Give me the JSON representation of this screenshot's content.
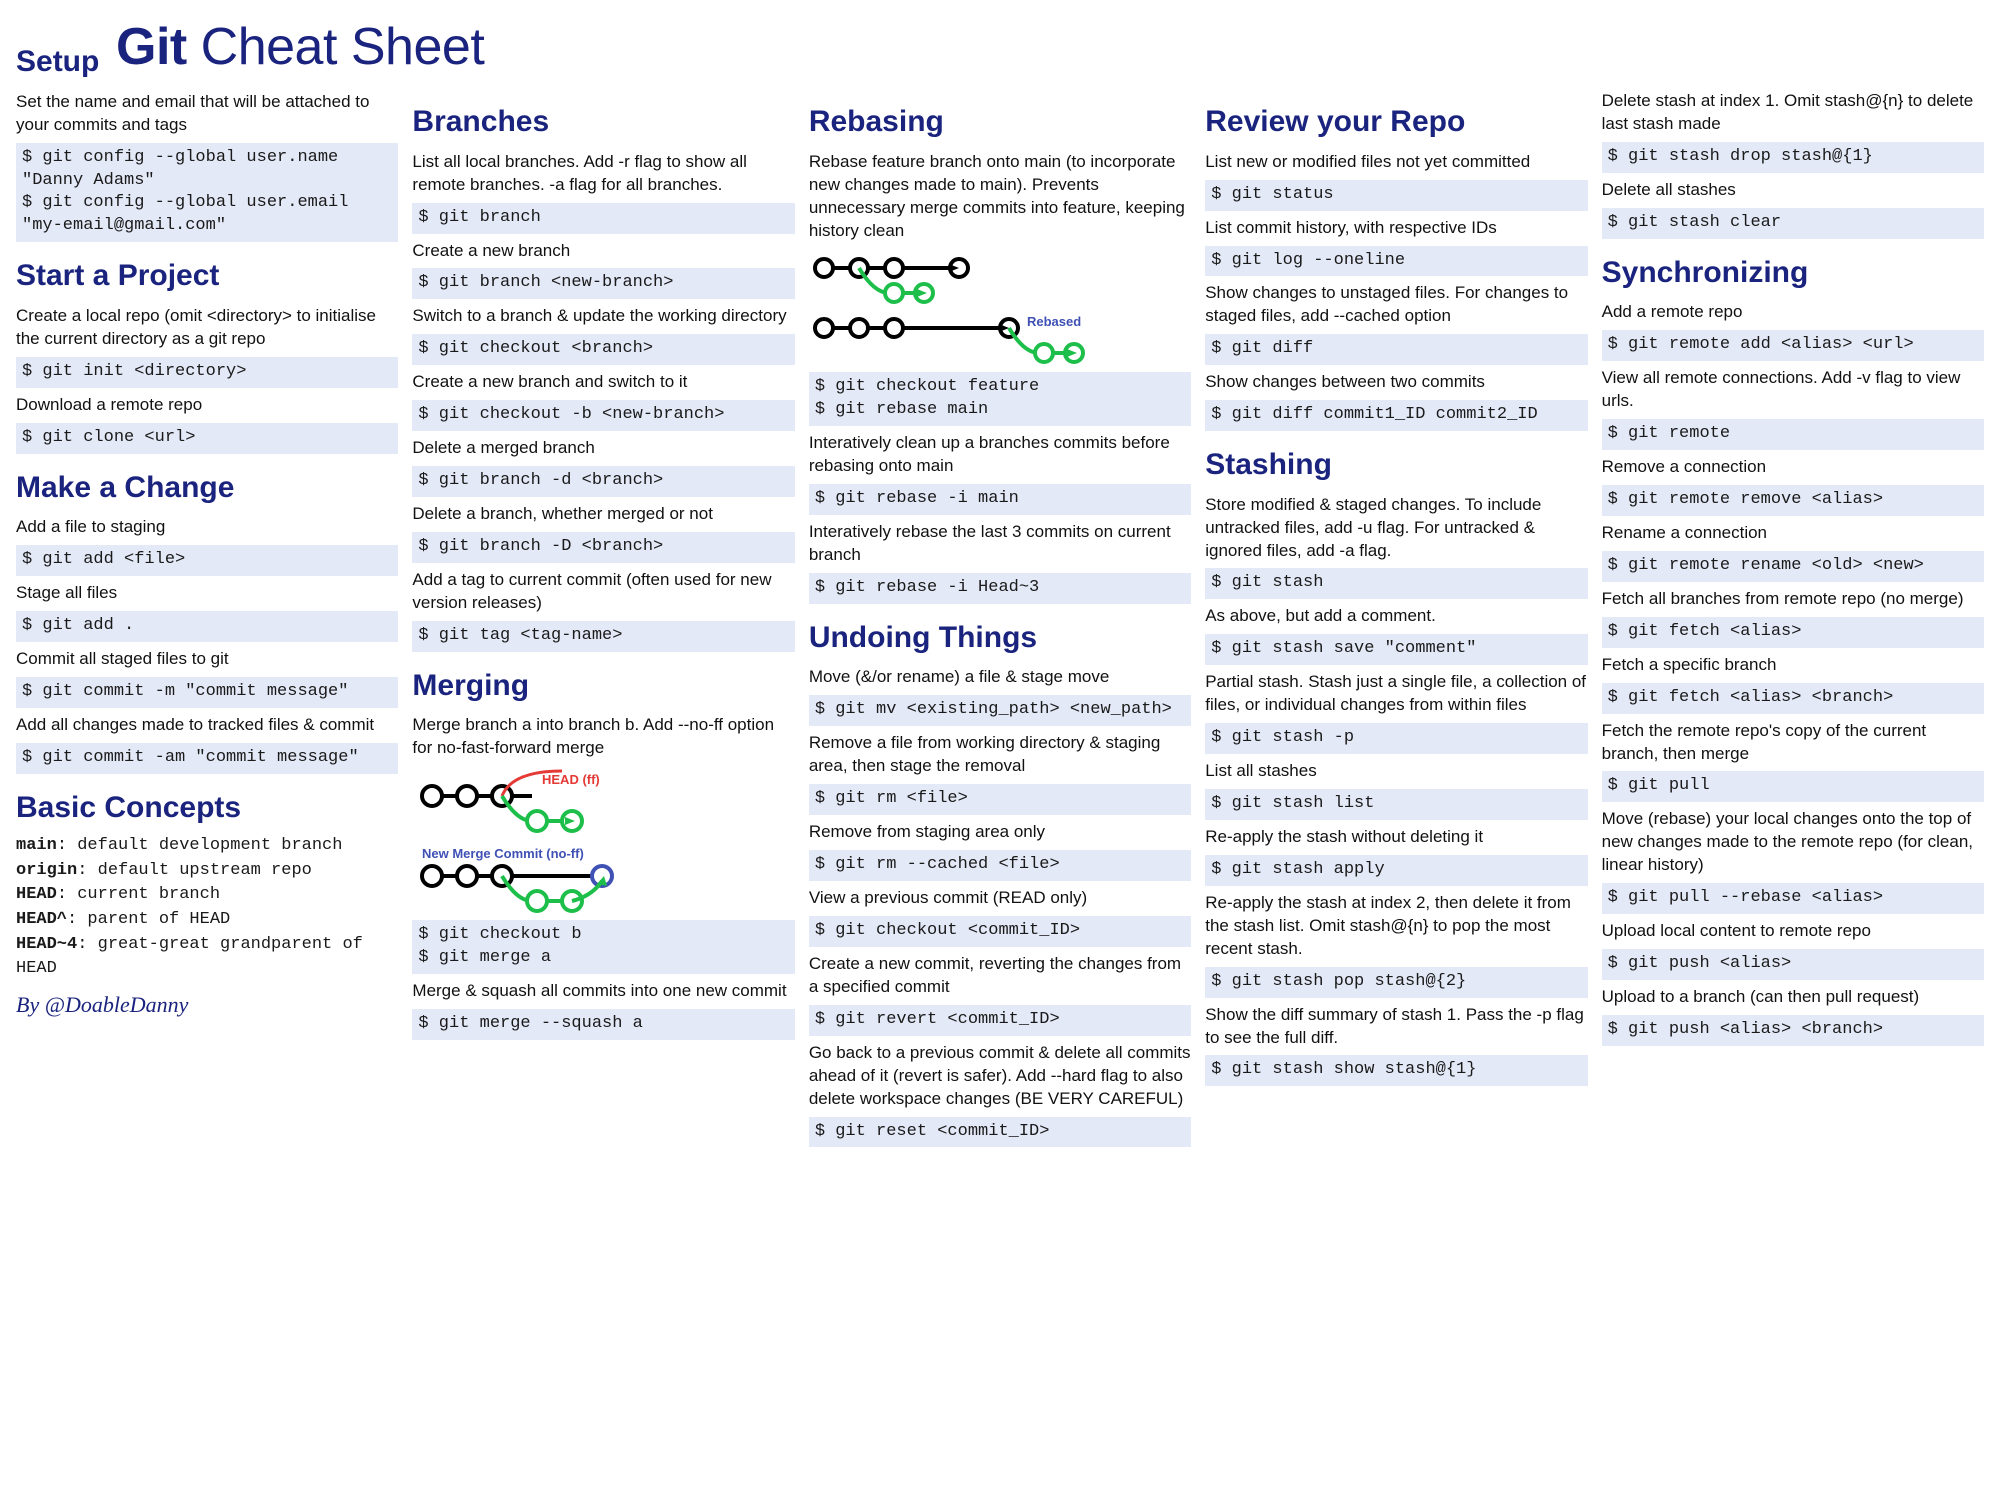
{
  "title_bold": "Git",
  "title_rest": " Cheat Sheet",
  "credit": "By @DoableDanny",
  "colors": {
    "heading": "#1a237e",
    "code_bg": "#e4e9f7",
    "text": "#1a1a1a",
    "diagram_black": "#000000",
    "diagram_green": "#1dbf4a",
    "diagram_red": "#e53935",
    "diagram_blue": "#3f51b5"
  },
  "col1": [
    {
      "type": "h",
      "text": "Setup"
    },
    {
      "type": "p",
      "text": "Set the name and email that will be attached to your commits and tags"
    },
    {
      "type": "c",
      "text": "$ git config --global user.name \"Danny Adams\"\n$ git config --global user.email \"my-email@gmail.com\""
    },
    {
      "type": "h",
      "text": "Start a Project"
    },
    {
      "type": "p",
      "text": "Create a local repo (omit <directory> to initialise the current directory as a git repo"
    },
    {
      "type": "c",
      "text": "$ git init <directory>"
    },
    {
      "type": "p",
      "text": "Download a remote repo"
    },
    {
      "type": "c",
      "text": "$ git clone <url>"
    },
    {
      "type": "h",
      "text": "Make a Change"
    },
    {
      "type": "p",
      "text": "Add a file to staging"
    },
    {
      "type": "c",
      "text": "$ git add <file>"
    },
    {
      "type": "p",
      "text": "Stage all files"
    },
    {
      "type": "c",
      "text": "$ git add ."
    },
    {
      "type": "p",
      "text": "Commit all staged files to git"
    },
    {
      "type": "c",
      "text": "$ git commit -m \"commit message\""
    },
    {
      "type": "p",
      "text": "Add all changes made to tracked files & commit"
    },
    {
      "type": "c",
      "text": "$ git commit -am \"commit message\""
    },
    {
      "type": "h",
      "text": "Basic Concepts"
    },
    {
      "type": "mono",
      "text": "<b>main</b>: default development branch\n<b>origin</b>: default upstream repo\n<b>HEAD</b>: current branch\n<b>HEAD^</b>: parent of HEAD\n<b>HEAD~4</b>: great-great grandparent of HEAD"
    },
    {
      "type": "credit"
    }
  ],
  "col2": [
    {
      "type": "h",
      "text": "Branches"
    },
    {
      "type": "p",
      "text": "List all local branches. Add -r flag to show all remote branches. -a flag for all branches."
    },
    {
      "type": "c",
      "text": "$ git branch"
    },
    {
      "type": "p",
      "text": "Create a new branch"
    },
    {
      "type": "c",
      "text": "$ git branch <new-branch>"
    },
    {
      "type": "p",
      "text": "Switch to a branch & update the working directory"
    },
    {
      "type": "c",
      "text": "$ git checkout <branch>"
    },
    {
      "type": "p",
      "text": "Create a new branch and switch to it"
    },
    {
      "type": "c",
      "text": "$ git checkout -b <new-branch>"
    },
    {
      "type": "p",
      "text": "Delete a merged branch"
    },
    {
      "type": "c",
      "text": "$ git branch -d <branch>"
    },
    {
      "type": "p",
      "text": "Delete a branch, whether merged or not"
    },
    {
      "type": "c",
      "text": "$ git branch -D <branch>"
    },
    {
      "type": "p",
      "text": "Add a tag to current commit (often used for new version releases)"
    },
    {
      "type": "c",
      "text": "$ git tag <tag-name>"
    },
    {
      "type": "h",
      "text": "Merging"
    },
    {
      "type": "p",
      "text": "Merge branch a into branch b. Add --no-ff option for no-fast-forward merge"
    },
    {
      "type": "diagram",
      "id": "merge"
    },
    {
      "type": "c",
      "text": "$ git checkout b\n$ git merge a"
    },
    {
      "type": "p",
      "text": "Merge & squash all commits into one new commit"
    },
    {
      "type": "c",
      "text": "$ git merge --squash a"
    }
  ],
  "col3": [
    {
      "type": "h",
      "text": "Rebasing"
    },
    {
      "type": "p",
      "text": "Rebase feature branch onto main (to incorporate new changes made to main). Prevents unnecessary merge commits into feature, keeping history clean"
    },
    {
      "type": "diagram",
      "id": "rebase"
    },
    {
      "type": "c",
      "text": "$ git checkout feature\n$ git rebase main"
    },
    {
      "type": "p",
      "text": "Interatively clean up a branches commits before rebasing onto main"
    },
    {
      "type": "c",
      "text": "$ git rebase -i main"
    },
    {
      "type": "p",
      "text": "Interatively rebase the last 3 commits on current branch"
    },
    {
      "type": "c",
      "text": "$ git rebase -i Head~3"
    },
    {
      "type": "h",
      "text": "Undoing Things"
    },
    {
      "type": "p",
      "text": "Move (&/or rename) a file & stage move"
    },
    {
      "type": "c",
      "text": "$ git mv <existing_path> <new_path>"
    },
    {
      "type": "p",
      "text": "Remove a file from working directory & staging area, then stage the removal"
    },
    {
      "type": "c",
      "text": "$ git rm <file>"
    },
    {
      "type": "p",
      "text": "Remove from staging area only"
    },
    {
      "type": "c",
      "text": "$ git rm --cached <file>"
    },
    {
      "type": "p",
      "text": "View a previous commit (READ only)"
    },
    {
      "type": "c",
      "text": "$ git checkout <commit_ID>"
    },
    {
      "type": "p",
      "text": "Create a new commit, reverting the changes from a specified commit"
    },
    {
      "type": "c",
      "text": "$ git revert <commit_ID>"
    },
    {
      "type": "p",
      "text": "Go back to a previous commit & delete all commits ahead of it (revert is safer). Add --hard flag to also delete workspace changes (BE VERY CAREFUL)"
    },
    {
      "type": "c",
      "text": "$ git reset <commit_ID>"
    }
  ],
  "col4": [
    {
      "type": "h",
      "text": "Review your Repo"
    },
    {
      "type": "p",
      "text": "List new or modified files not yet committed"
    },
    {
      "type": "c",
      "text": "$ git status"
    },
    {
      "type": "p",
      "text": "List commit history, with respective IDs"
    },
    {
      "type": "c",
      "text": "$ git log --oneline"
    },
    {
      "type": "p",
      "text": "Show changes to unstaged files. For changes to staged files, add --cached option"
    },
    {
      "type": "c",
      "text": "$ git diff"
    },
    {
      "type": "p",
      "text": "Show changes between two commits"
    },
    {
      "type": "c",
      "text": "$ git diff commit1_ID commit2_ID"
    },
    {
      "type": "h",
      "text": "Stashing"
    },
    {
      "type": "p",
      "text": "Store modified & staged changes. To include untracked files, add -u flag. For untracked & ignored files, add -a flag."
    },
    {
      "type": "c",
      "text": "$ git stash"
    },
    {
      "type": "p",
      "text": "As above, but add a comment."
    },
    {
      "type": "c",
      "text": "$ git stash save \"comment\""
    },
    {
      "type": "p",
      "text": "Partial stash. Stash just a single file, a collection of files, or individual changes from within files"
    },
    {
      "type": "c",
      "text": "$ git stash -p"
    },
    {
      "type": "p",
      "text": "List all stashes"
    },
    {
      "type": "c",
      "text": "$ git stash list"
    },
    {
      "type": "p",
      "text": "Re-apply the stash without deleting it"
    },
    {
      "type": "c",
      "text": "$ git stash apply"
    },
    {
      "type": "p",
      "text": "Re-apply the stash at index 2, then delete it from the stash list. Omit stash@{n} to pop the most recent stash."
    },
    {
      "type": "c",
      "text": "$ git stash pop stash@{2}"
    },
    {
      "type": "p",
      "text": "Show the diff summary of stash 1. Pass the -p flag to see the full diff."
    },
    {
      "type": "c",
      "text": "$ git stash show stash@{1}"
    }
  ],
  "col5": [
    {
      "type": "p",
      "text": "Delete stash at index 1. Omit stash@{n} to delete last stash made"
    },
    {
      "type": "c",
      "text": "$ git stash drop stash@{1}"
    },
    {
      "type": "p",
      "text": "Delete all stashes"
    },
    {
      "type": "c",
      "text": "$ git stash clear"
    },
    {
      "type": "h",
      "text": "Synchronizing"
    },
    {
      "type": "p",
      "text": "Add a remote repo"
    },
    {
      "type": "c",
      "text": "$ git remote add <alias> <url>"
    },
    {
      "type": "p",
      "text": "View all remote connections. Add -v flag to view urls."
    },
    {
      "type": "c",
      "text": "$ git remote"
    },
    {
      "type": "p",
      "text": "Remove a connection"
    },
    {
      "type": "c",
      "text": "$ git remote remove <alias>"
    },
    {
      "type": "p",
      "text": "Rename a connection"
    },
    {
      "type": "c",
      "text": "$ git remote rename <old> <new>"
    },
    {
      "type": "p",
      "text": "Fetch all branches from remote repo (no merge)"
    },
    {
      "type": "c",
      "text": "$ git fetch <alias>"
    },
    {
      "type": "p",
      "text": "Fetch a specific branch"
    },
    {
      "type": "c",
      "text": "$ git fetch <alias> <branch>"
    },
    {
      "type": "p",
      "text": "Fetch the remote repo's copy of the current branch, then merge"
    },
    {
      "type": "c",
      "text": "$ git pull"
    },
    {
      "type": "p",
      "text": "Move (rebase) your local changes onto the top of new changes made to the remote repo (for clean, linear history)"
    },
    {
      "type": "c",
      "text": "$ git pull --rebase <alias>"
    },
    {
      "type": "p",
      "text": "Upload local content to remote repo"
    },
    {
      "type": "c",
      "text": "$ git push <alias>"
    },
    {
      "type": "p",
      "text": "Upload to a branch (can then pull request)"
    },
    {
      "type": "c",
      "text": "$ git push <alias> <branch>"
    }
  ],
  "diagram_merge": {
    "label_ff": "HEAD (ff)",
    "label_noff": "New Merge Commit (no-ff)"
  },
  "diagram_rebase": {
    "label": "Rebased"
  }
}
